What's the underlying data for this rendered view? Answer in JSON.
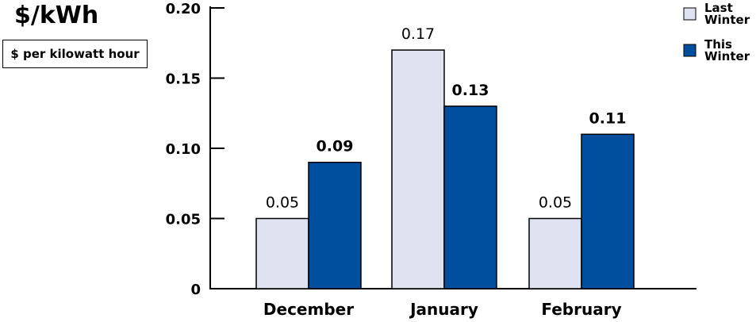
{
  "header": {
    "unit_title": "$/kWh",
    "unit_caption": "$ per kilowatt hour"
  },
  "colors": {
    "last_winter": "#dfe2f0",
    "this_winter": "#004f9e",
    "axis": "#000000"
  },
  "chart_data": {
    "type": "bar",
    "categories": [
      "December",
      "January",
      "February"
    ],
    "series": [
      {
        "name": "Last Winter",
        "values": [
          0.05,
          0.17,
          0.05
        ],
        "labels": [
          "0.05",
          "0.17",
          "0.05"
        ]
      },
      {
        "name": "This Winter",
        "values": [
          0.09,
          0.13,
          0.11
        ],
        "labels": [
          "0.09",
          "0.13",
          "0.11"
        ]
      }
    ],
    "ylim": [
      0,
      0.2
    ],
    "yticks": [
      0,
      0.05,
      0.1,
      0.15,
      0.2
    ],
    "ytick_labels": [
      "0",
      "0.05",
      "0.10",
      "0.15",
      "0.20"
    ],
    "legend": {
      "placement": "top-right",
      "entries": [
        {
          "line1": "Last",
          "line2": "Winter"
        },
        {
          "line1": "This",
          "line2": "Winter"
        }
      ]
    },
    "grid": false
  }
}
